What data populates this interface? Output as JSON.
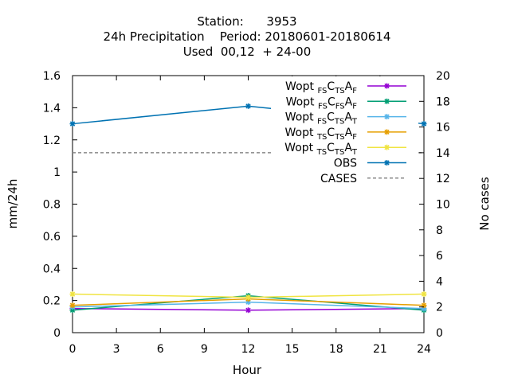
{
  "chart_data": {
    "type": "line",
    "title_lines": [
      "Station:      3953",
      "24h Precipitation    Period: 20180601-20180614",
      "Used  00,12  + 24-00"
    ],
    "xlabel": "Hour",
    "ylabel": "mm/24h",
    "y2label": "No cases",
    "xlim": [
      0,
      24
    ],
    "ylim": [
      0,
      1.6
    ],
    "y2lim": [
      0,
      20
    ],
    "xticks": [
      "0",
      "3",
      "6",
      "9",
      "12",
      "15",
      "18",
      "21",
      "24"
    ],
    "yticks": [
      "0",
      "0.2",
      "0.4",
      "0.6",
      "0.8",
      "1",
      "1.2",
      "1.4",
      "1.6"
    ],
    "y2ticks": [
      "0",
      "2",
      "4",
      "6",
      "8",
      "10",
      "12",
      "14",
      "16",
      "18",
      "20"
    ],
    "x": [
      0,
      12,
      24
    ],
    "series": [
      {
        "name": "Wopt FS CTS AF",
        "label_parts": [
          [
            "Wopt ",
            ""
          ],
          [
            "FS",
            "sub"
          ],
          [
            "C",
            ""
          ],
          [
            "TS",
            "sub"
          ],
          [
            "A",
            ""
          ],
          [
            "F",
            "sub"
          ]
        ],
        "color": "#9400d3",
        "values": [
          0.15,
          0.14,
          0.15
        ]
      },
      {
        "name": "Wopt FS CFS AF",
        "label_parts": [
          [
            "Wopt ",
            ""
          ],
          [
            "FS",
            "sub"
          ],
          [
            "C",
            ""
          ],
          [
            "FS",
            "sub"
          ],
          [
            "A",
            ""
          ],
          [
            "F",
            "sub"
          ]
        ],
        "color": "#009e73",
        "values": [
          0.14,
          0.23,
          0.14
        ]
      },
      {
        "name": "Wopt FS CTS AT",
        "label_parts": [
          [
            "Wopt ",
            ""
          ],
          [
            "FS",
            "sub"
          ],
          [
            "C",
            ""
          ],
          [
            "TS",
            "sub"
          ],
          [
            "A",
            ""
          ],
          [
            "T",
            "sub"
          ]
        ],
        "color": "#56b4e9",
        "values": [
          0.16,
          0.19,
          0.15
        ]
      },
      {
        "name": "Wopt TS CTS AF",
        "label_parts": [
          [
            "Wopt ",
            ""
          ],
          [
            "TS",
            "sub"
          ],
          [
            "C",
            ""
          ],
          [
            "TS",
            "sub"
          ],
          [
            "A",
            ""
          ],
          [
            "F",
            "sub"
          ]
        ],
        "color": "#e69f00",
        "values": [
          0.17,
          0.21,
          0.17
        ]
      },
      {
        "name": "Wopt TS CTS AT",
        "label_parts": [
          [
            "Wopt ",
            ""
          ],
          [
            "TS",
            "sub"
          ],
          [
            "C",
            ""
          ],
          [
            "TS",
            "sub"
          ],
          [
            "A",
            ""
          ],
          [
            "T",
            "sub"
          ]
        ],
        "color": "#f0e442",
        "values": [
          0.24,
          0.22,
          0.24
        ]
      },
      {
        "name": "OBS",
        "label_parts": [
          [
            "OBS",
            ""
          ]
        ],
        "color": "#0072b2",
        "values": [
          1.3,
          1.41,
          1.3
        ]
      }
    ],
    "cases": {
      "name": "CASES",
      "color": "#888888",
      "value": 14
    },
    "legend_position": "top-right",
    "grid": false
  }
}
